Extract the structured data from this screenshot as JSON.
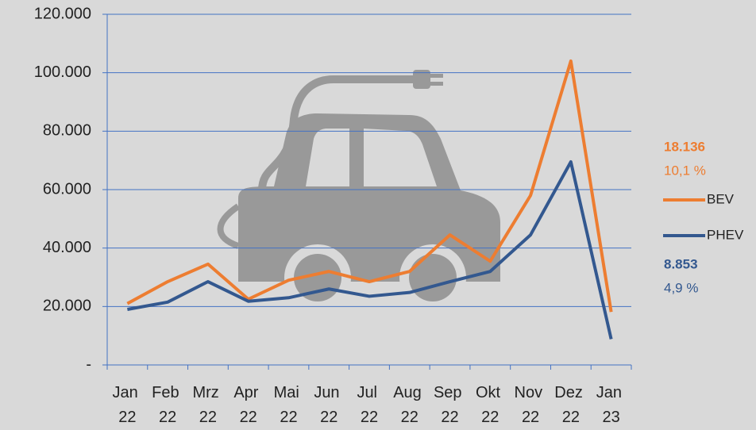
{
  "chart_data": {
    "type": "line",
    "categories": [
      "Jan 22",
      "Feb 22",
      "Mrz 22",
      "Apr 22",
      "Mai 22",
      "Jun 22",
      "Jul 22",
      "Aug 22",
      "Sep 22",
      "Okt 22",
      "Nov 22",
      "Dez 22",
      "Jan 23"
    ],
    "series": [
      {
        "name": "BEV",
        "color": "#ed7d31",
        "values": [
          21000,
          28500,
          34500,
          22500,
          29000,
          32000,
          28500,
          32000,
          44500,
          35500,
          58000,
          104000,
          18136
        ]
      },
      {
        "name": "PHEV",
        "color": "#33588f",
        "values": [
          19000,
          21500,
          28500,
          21800,
          23000,
          26000,
          23500,
          24800,
          28500,
          32000,
          44500,
          69500,
          8853
        ]
      }
    ],
    "annotations": [
      {
        "text": "18.136",
        "color": "#ed7d31",
        "bold": true
      },
      {
        "text": "10,1 %",
        "color": "#ed7d31",
        "bold": false
      },
      {
        "text": "8.853",
        "color": "#33588f",
        "bold": true
      },
      {
        "text": "4,9 %",
        "color": "#33588f",
        "bold": false
      }
    ],
    "ylim": [
      0,
      120000
    ],
    "yticks": [
      {
        "value": 0,
        "label": "-"
      },
      {
        "value": 20000,
        "label": "20.000"
      },
      {
        "value": 40000,
        "label": "40.000"
      },
      {
        "value": 60000,
        "label": "60.000"
      },
      {
        "value": 80000,
        "label": "80.000"
      },
      {
        "value": 100000,
        "label": "100.000"
      },
      {
        "value": 120000,
        "label": "120.000"
      }
    ],
    "grid": true,
    "grid_color": "#4472c4",
    "legend": "right"
  }
}
